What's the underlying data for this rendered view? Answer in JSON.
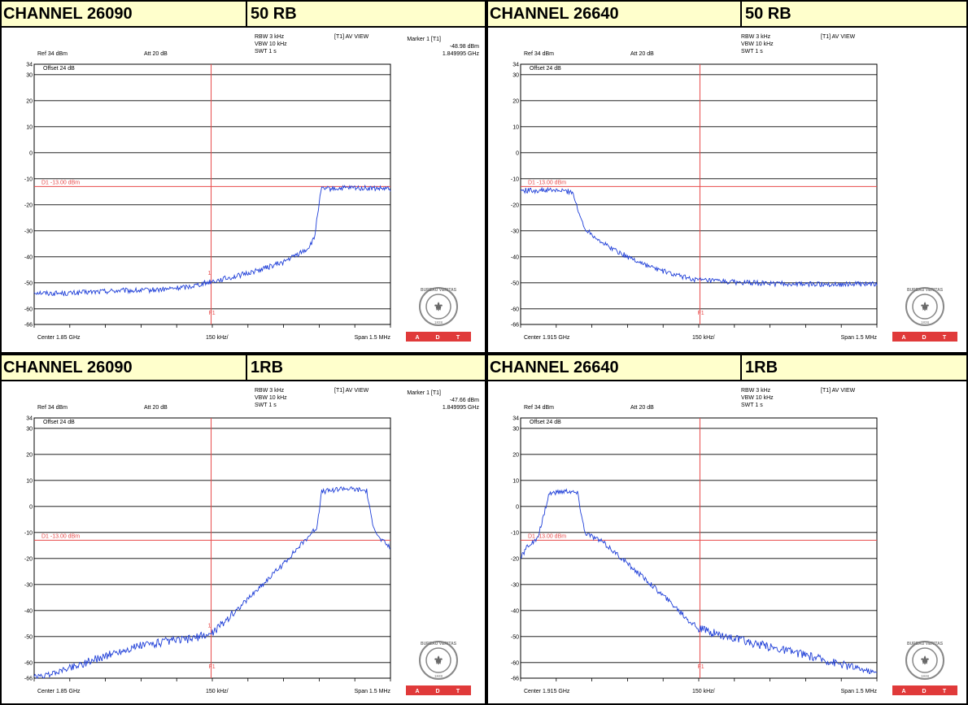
{
  "panels": [
    {
      "channel": "CHANNEL 26090",
      "rb": "50 RB",
      "settings": {
        "rbw": "RBW 3 kHz",
        "vbw": "VBW 10 kHz",
        "swt": "SWT 1 s",
        "view": "[T1] AV VIEW"
      },
      "marker": {
        "title": "Marker 1 [T1]",
        "level": "-48.98 dBm",
        "freq": "1.849995 GHz"
      },
      "ref": "Ref 34 dBm",
      "att": "Att 20 dB",
      "offset": "Offset 24 dB",
      "limit_label": "D1 -13.00 dBm",
      "center": "Center 1.85 GHz",
      "div": "150 kHz/",
      "span": "Span 1.5 MHz",
      "marker_num": "1",
      "f1": "F1",
      "y_ticks": [
        "34",
        "30",
        "20",
        "10",
        "0",
        "-10",
        "-20",
        "-30",
        "-40",
        "-50",
        "-60",
        "-66"
      ],
      "chart_data": {
        "type": "line",
        "ylim": [
          -66,
          34
        ],
        "xlim": [
          1.84925,
          1.85075
        ],
        "limit": -13,
        "marker_x": 1.849995,
        "series": [
          {
            "x": [
              1.84925,
              1.8493,
              1.8494,
              1.8495,
              1.8496,
              1.8497,
              1.8498,
              1.8499,
              1.849995,
              1.8501,
              1.8502,
              1.8503,
              1.8504,
              1.85043,
              1.850445,
              1.85046,
              1.8506,
              1.85075
            ],
            "y": [
              -53.5,
              -54,
              -54,
              -53.5,
              -53,
              -53,
              -52.5,
              -51.5,
              -49.5,
              -47.5,
              -45,
              -42,
              -37,
              -33,
              -22,
              -14,
              -13.5,
              -14
            ]
          }
        ]
      }
    },
    {
      "channel": "CHANNEL 26640",
      "rb": "50 RB",
      "settings": {
        "rbw": "RBW 3 kHz",
        "vbw": "VBW 10 kHz",
        "swt": "SWT 1 s",
        "view": "[T1] AV VIEW"
      },
      "ref": "Ref 34 dBm",
      "att": "Att 20 dB",
      "offset": "Offset 24 dB",
      "limit_label": "D1 -13.00 dBm",
      "center": "Center 1.915 GHz",
      "div": "150 kHz/",
      "span": "Span 1.5 MHz",
      "f1": "F1",
      "y_ticks": [
        "34",
        "30",
        "20",
        "10",
        "0",
        "-10",
        "-20",
        "-30",
        "-40",
        "-50",
        "-60",
        "-66"
      ],
      "chart_data": {
        "type": "line",
        "ylim": [
          -66,
          34
        ],
        "xlim": [
          1.91425,
          1.91575
        ],
        "limit": -13,
        "marker_x": 1.915005,
        "series": [
          {
            "x": [
              1.91425,
              1.9144,
              1.91447,
              1.91449,
              1.91452,
              1.9146,
              1.9147,
              1.9148,
              1.9149,
              1.915,
              1.9152,
              1.9154,
              1.91575
            ],
            "y": [
              -14.5,
              -14.5,
              -15,
              -22,
              -29,
              -35,
              -40,
              -44,
              -47,
              -49,
              -50,
              -50.5,
              -50.5
            ]
          }
        ]
      }
    },
    {
      "channel": "CHANNEL 26090",
      "rb": "1RB",
      "settings": {
        "rbw": "RBW 3 kHz",
        "vbw": "VBW 10 kHz",
        "swt": "SWT 1 s",
        "view": "[T1] AV VIEW"
      },
      "marker": {
        "title": "Marker 1 [T1]",
        "level": "-47.66 dBm",
        "freq": "1.849995 GHz"
      },
      "ref": "Ref 34 dBm",
      "att": "Att 20 dB",
      "offset": "Offset 24 dB",
      "limit_label": "D1 -13.00 dBm",
      "center": "Center 1.85 GHz",
      "div": "150 kHz/",
      "span": "Span 1.5 MHz",
      "marker_num": "1",
      "f1": "F1",
      "y_ticks": [
        "34",
        "30",
        "20",
        "10",
        "0",
        "-10",
        "-20",
        "-30",
        "-40",
        "-50",
        "-60",
        "-66"
      ],
      "chart_data": {
        "type": "line",
        "ylim": [
          -66,
          34
        ],
        "xlim": [
          1.84925,
          1.85075
        ],
        "limit": -13,
        "marker_x": 1.849995,
        "series": [
          {
            "x": [
              1.84925,
              1.8493,
              1.8494,
              1.8495,
              1.8496,
              1.8497,
              1.8498,
              1.8499,
              1.849995,
              1.8501,
              1.8502,
              1.8503,
              1.8504,
              1.85044,
              1.85046,
              1.85055,
              1.85065,
              1.85067,
              1.8507,
              1.85075
            ],
            "y": [
              -65.5,
              -65,
              -62,
              -59,
              -56,
              -53.5,
              -52,
              -51,
              -49,
              -40,
              -31,
              -22,
              -12,
              -8,
              5.5,
              7,
              6,
              -5,
              -12,
              -16
            ]
          }
        ]
      }
    },
    {
      "channel": "CHANNEL 26640",
      "rb": "1RB",
      "settings": {
        "rbw": "RBW 3 kHz",
        "vbw": "VBW 10 kHz",
        "swt": "SWT 1 s",
        "view": "[T1] AV VIEW"
      },
      "ref": "Ref 34 dBm",
      "att": "Att 20 dB",
      "offset": "Offset 24 dB",
      "limit_label": "D1 -13.00 dBm",
      "center": "Center 1.915 GHz",
      "div": "150 kHz/",
      "span": "Span 1.5 MHz",
      "f1": "F1",
      "y_ticks": [
        "34",
        "30",
        "20",
        "10",
        "0",
        "-10",
        "-20",
        "-30",
        "-40",
        "-50",
        "-60",
        "-66"
      ],
      "chart_data": {
        "type": "line",
        "ylim": [
          -66,
          34
        ],
        "xlim": [
          1.91425,
          1.91575
        ],
        "limit": -13,
        "marker_x": 1.915005,
        "series": [
          {
            "x": [
              1.91425,
              1.91428,
              1.91432,
              1.91434,
              1.91437,
              1.91445,
              1.91449,
              1.91452,
              1.9146,
              1.9148,
              1.915,
              1.9152,
              1.9154,
              1.91575
            ],
            "y": [
              -20,
              -15,
              -13,
              -6,
              5,
              6,
              5,
              -10,
              -14,
              -30,
              -47,
              -52,
              -56,
              -64
            ]
          }
        ]
      }
    }
  ],
  "logo": {
    "text": "BUREAU VERITAS",
    "year": "1828"
  },
  "adt": [
    "A",
    "D",
    "T"
  ],
  "colors": {
    "header_bg": "#ffffcc",
    "grid": "#000000",
    "trace": "#1f3fd8",
    "limit": "#e84a4a",
    "adt": "#e03a3a"
  }
}
